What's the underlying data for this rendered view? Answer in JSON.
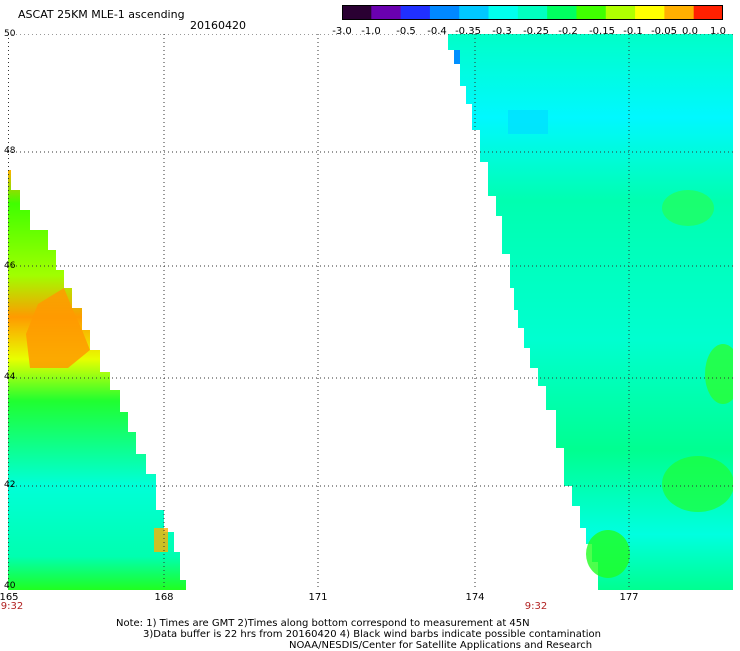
{
  "header": {
    "title": "ASCAT 25KM MLE-1 ascending",
    "date": "20160420"
  },
  "colorbar": {
    "ticks": [
      "-3.0",
      "-1.0",
      "-0.5",
      "-0.4",
      "-0.35",
      "-0.3",
      "-0.25",
      "-0.2",
      "-0.15",
      "-0.1",
      "-0.05",
      "0.0",
      "1.0"
    ],
    "colors": [
      "#2a0032",
      "#6a00b0",
      "#2030ff",
      "#0088ff",
      "#00c8ff",
      "#00ffee",
      "#00ffc0",
      "#00ff60",
      "#40ff00",
      "#b0ff00",
      "#ffff00",
      "#ffb000",
      "#ff2000"
    ]
  },
  "map": {
    "lat_labels": [
      "50",
      "48",
      "46",
      "44",
      "42",
      "40"
    ],
    "lon_labels": [
      "165",
      "168",
      "171",
      "174",
      "177"
    ],
    "time_labels": [
      {
        "text": "9:32",
        "lon": 165
      },
      {
        "text": "9:32",
        "lon": 175
      }
    ]
  },
  "footer": {
    "line1": "Note: 1) Times are GMT 2)Times along bottom correspond to measurement at 45N",
    "line2": "3)Data buffer is 22 hrs from 20160420 4) Black wind barbs indicate possible contamination",
    "line3": "NOAA/NESDIS/Center for Satellite Applications and Research"
  }
}
